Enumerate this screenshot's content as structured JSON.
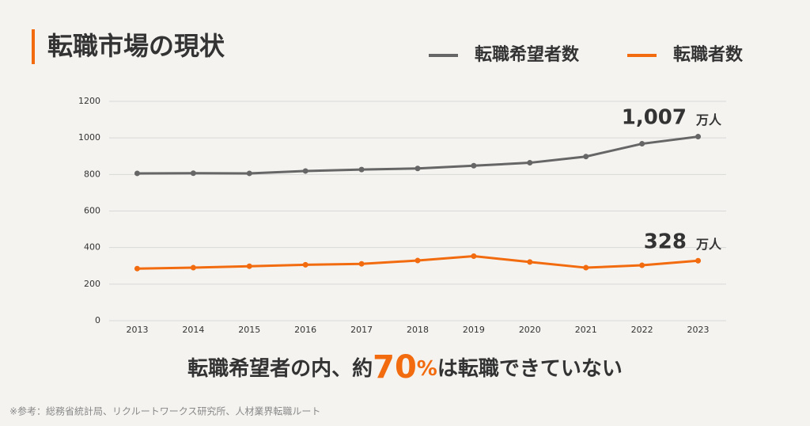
{
  "chart_data": {
    "type": "line",
    "title": "転職市場の現状",
    "categories": [
      "2013",
      "2014",
      "2015",
      "2016",
      "2017",
      "2018",
      "2019",
      "2020",
      "2021",
      "2022",
      "2023"
    ],
    "series": [
      {
        "name": "転職希望者数",
        "color": "#666666",
        "values": [
          806,
          807,
          806,
          819,
          827,
          833,
          848,
          864,
          898,
          968,
          1007
        ],
        "value_labels": [
          null,
          null,
          null,
          null,
          null,
          null,
          null,
          null,
          null,
          null,
          "1,007"
        ]
      },
      {
        "name": "転職者数",
        "color": "#f26b0f",
        "values": [
          285,
          290,
          298,
          306,
          311,
          329,
          353,
          321,
          290,
          303,
          328
        ]
      }
    ],
    "unit": "万人",
    "ylim": [
      0,
      1200
    ],
    "yticks": [
      0,
      200,
      400,
      600,
      800,
      1000,
      1200
    ],
    "grid": true,
    "callout": {
      "before": "転職希望者の内、約",
      "highlight": "70",
      "percent": "%",
      "after": "は転職できていない"
    },
    "source": "※参考：総務省統計局、リクルートワークス研究所、人材業界転職ルート"
  }
}
